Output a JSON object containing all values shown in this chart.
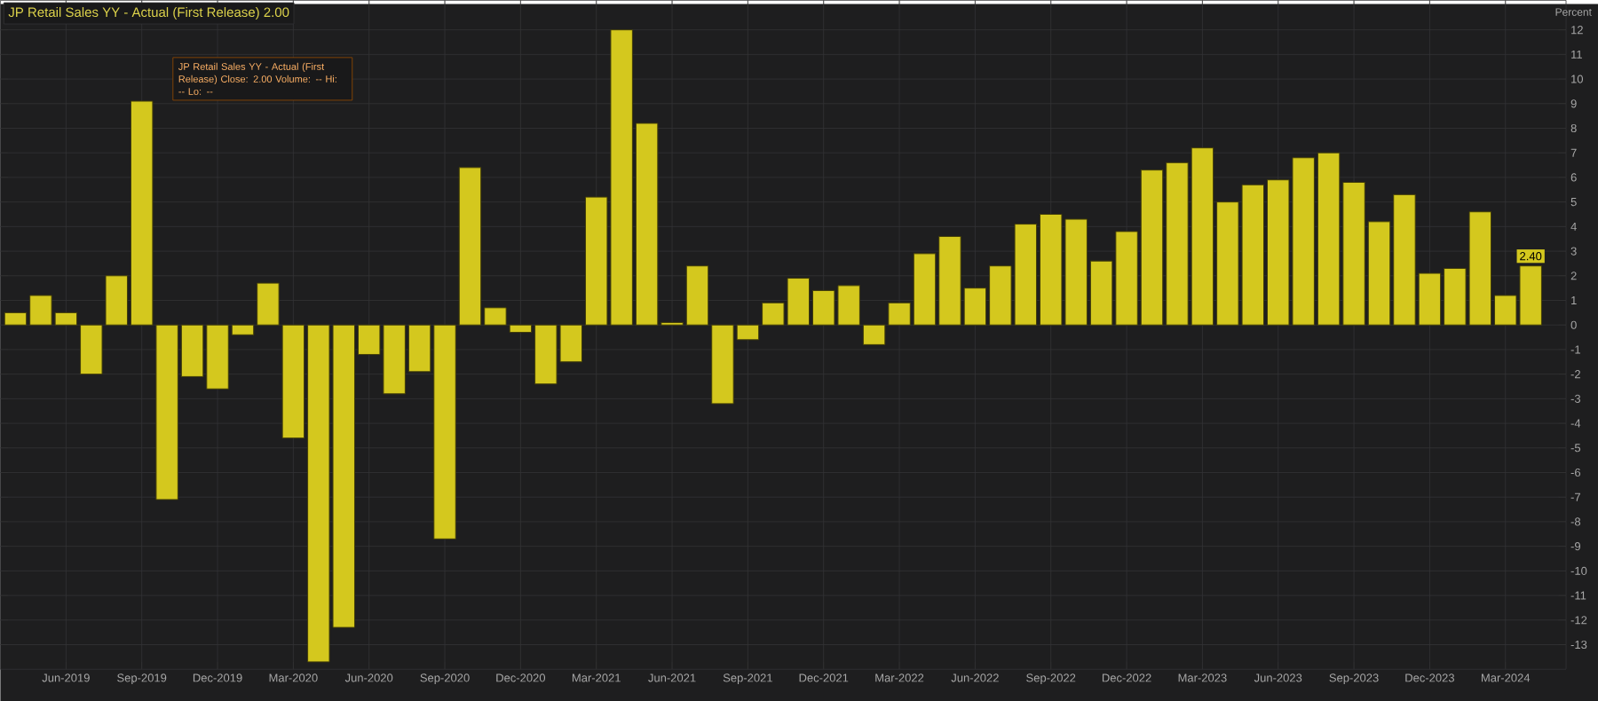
{
  "chart_data": {
    "type": "bar",
    "title": "JP Retail Sales YY - Actual (First Release) 2.00",
    "ylabel": "Percent",
    "annotations": [
      "JP Retail Sales YY - Actual (First Release)   Close: 2.00   Volume: --   Hi: --   Lo: --"
    ],
    "categories": [
      null,
      null,
      "Jun-2019",
      null,
      null,
      "Sep-2019",
      null,
      null,
      "Dec-2019",
      null,
      null,
      "Mar-2020",
      null,
      null,
      "Jun-2020",
      null,
      null,
      "Sep-2020",
      null,
      null,
      "Dec-2020",
      null,
      null,
      "Mar-2021",
      null,
      null,
      "Jun-2021",
      null,
      null,
      "Sep-2021",
      null,
      null,
      "Dec-2021",
      null,
      null,
      "Mar-2022",
      null,
      null,
      "Jun-2022",
      null,
      null,
      "Sep-2022",
      null,
      null,
      "Dec-2022",
      null,
      null,
      "Mar-2023",
      null,
      null,
      "Jun-2023",
      null,
      null,
      "Sep-2023",
      null,
      null,
      "Dec-2023",
      null,
      null,
      "Mar-2024",
      null
    ],
    "values": [
      0.5,
      1.2,
      0.5,
      -2.0,
      2.0,
      9.1,
      -7.1,
      -2.1,
      -2.6,
      -0.4,
      1.7,
      -4.6,
      -13.7,
      -12.3,
      -1.2,
      -2.8,
      -1.9,
      -8.7,
      6.4,
      0.7,
      -0.3,
      -2.4,
      -1.5,
      5.2,
      12.0,
      8.2,
      0.1,
      2.4,
      -3.2,
      -0.6,
      0.9,
      1.9,
      1.4,
      1.6,
      -0.8,
      0.9,
      2.9,
      3.6,
      1.5,
      2.4,
      4.1,
      4.5,
      4.3,
      2.6,
      3.8,
      6.3,
      6.6,
      7.2,
      5.0,
      5.7,
      5.9,
      6.8,
      7.0,
      5.8,
      4.2,
      5.3,
      2.1,
      2.3,
      4.6,
      1.2,
      2.4
    ],
    "value_labels": [
      null,
      null,
      null,
      null,
      null,
      null,
      null,
      null,
      null,
      null,
      null,
      null,
      null,
      null,
      null,
      null,
      null,
      null,
      null,
      null,
      null,
      null,
      null,
      null,
      null,
      null,
      null,
      null,
      null,
      null,
      null,
      null,
      null,
      null,
      null,
      null,
      null,
      null,
      null,
      null,
      null,
      null,
      null,
      null,
      null,
      null,
      null,
      null,
      null,
      null,
      null,
      null,
      null,
      null,
      null,
      null,
      null,
      null,
      null,
      null,
      "2.40"
    ],
    "color": "#d4c81e",
    "ylim": [
      -14,
      13.2
    ],
    "yticks": [
      -13,
      -12,
      -11,
      -10,
      -9,
      -8,
      -7,
      -6,
      -5,
      -4,
      -3,
      -2,
      -1,
      0,
      1,
      2,
      3,
      4,
      5,
      6,
      7,
      8,
      9,
      10,
      11,
      12
    ],
    "grid": true
  }
}
